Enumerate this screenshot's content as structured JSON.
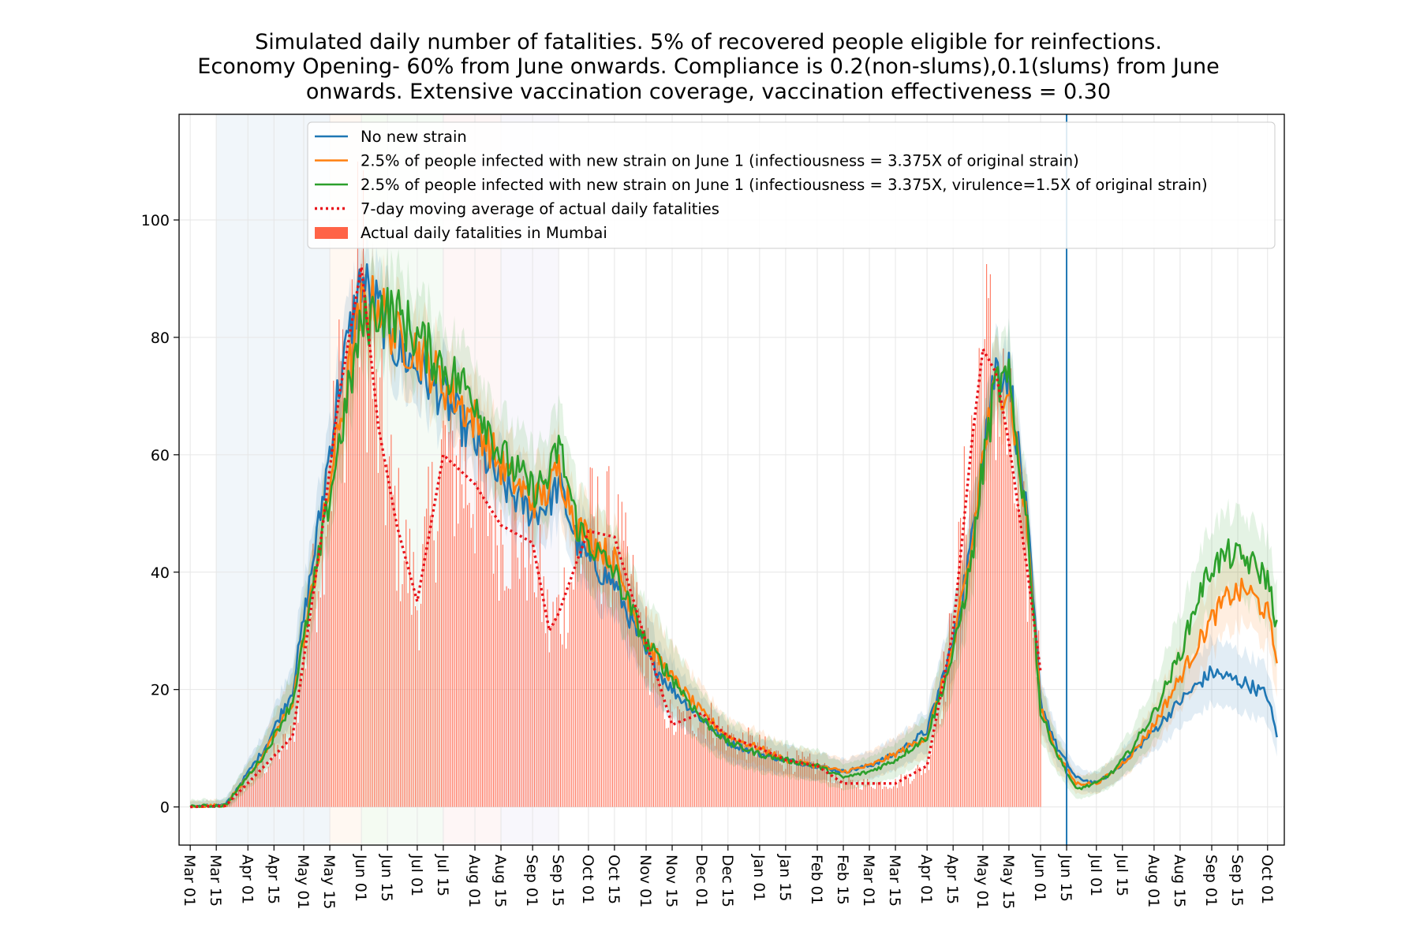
{
  "chart_data": {
    "type": "line",
    "title": [
      "Simulated daily number of fatalities. 5% of recovered people eligible for reinfections.",
      "Economy Opening- 60% from June onwards. Compliance is 0.2(non-slums),0.1(slums) from June",
      "onwards. Extensive vaccination coverage, vaccination effectiveness = 0.30"
    ],
    "xlabel": "",
    "ylabel": "",
    "ylim": [
      -6.5,
      118
    ],
    "grid": true,
    "x_start": "2020-02-24",
    "x_end": "2021-10-10",
    "x_tick_labels": [
      "Mar 01",
      "Mar 15",
      "Apr 01",
      "Apr 15",
      "May 01",
      "May 15",
      "Jun 01",
      "Jun 15",
      "Jul 01",
      "Jul 15",
      "Aug 01",
      "Aug 15",
      "Sep 01",
      "Sep 15",
      "Oct 01",
      "Oct 15",
      "Nov 01",
      "Nov 15",
      "Dec 01",
      "Dec 15",
      "Jan 01",
      "Jan 15",
      "Feb 01",
      "Feb 15",
      "Mar 01",
      "Mar 15",
      "Apr 01",
      "Apr 15",
      "May 01",
      "May 15",
      "Jun 01",
      "Jun 15",
      "Jul 01",
      "Jul 15",
      "Aug 01",
      "Aug 15",
      "Sep 01",
      "Sep 15",
      "Oct 01"
    ],
    "y_ticks": [
      0,
      20,
      40,
      60,
      80,
      100
    ],
    "y_tick_labels": [
      "0",
      "20",
      "40",
      "60",
      "80",
      "100"
    ],
    "vertical_line_label": "Jun 15 2021",
    "shaded_phases": [
      {
        "from": "Mar 15",
        "to": "May 15",
        "color": "#a6c8e0"
      },
      {
        "from": "May 15",
        "to": "Jun 01",
        "color": "#ffd3b0"
      },
      {
        "from": "Jun 01",
        "to": "Jun 15",
        "color": "#b8e6b0"
      },
      {
        "from": "Jun 15",
        "to": "Jul 15",
        "color": "#bfe6bf"
      },
      {
        "from": "Jul 15",
        "to": "Aug 15",
        "color": "#f6c6c6"
      },
      {
        "from": "Aug 15",
        "to": "Sep 15",
        "color": "#d4d0ee"
      }
    ],
    "legend": [
      {
        "label": "No new strain",
        "color": "#1f77b4",
        "style": "solid"
      },
      {
        "label": "2.5% of people infected with new strain on June 1 (infectiousness = 3.375X of original strain)",
        "color": "#ff7f0e",
        "style": "solid"
      },
      {
        "label": "2.5% of people infected with new strain on June 1 (infectiousness = 3.375X, virulence=1.5X of original strain)",
        "color": "#2ca02c",
        "style": "solid"
      },
      {
        "label": "7-day moving average of actual daily fatalities",
        "color": "#e8141c",
        "style": "dotted"
      },
      {
        "label": "Actual daily fatalities in Mumbai",
        "color": "#ff6347",
        "style": "bar"
      }
    ],
    "legend_position": "upper center",
    "series_keypoints_x": [
      "2020-03-01",
      "2020-03-20",
      "2020-04-10",
      "2020-04-25",
      "2020-05-10",
      "2020-05-20",
      "2020-06-01",
      "2020-06-10",
      "2020-06-20",
      "2020-07-01",
      "2020-07-15",
      "2020-08-01",
      "2020-08-15",
      "2020-09-01",
      "2020-09-10",
      "2020-09-15",
      "2020-09-25",
      "2020-10-01",
      "2020-10-15",
      "2020-11-01",
      "2020-11-15",
      "2020-12-01",
      "2020-12-15",
      "2021-01-01",
      "2021-01-15",
      "2021-02-01",
      "2021-02-15",
      "2021-03-01",
      "2021-03-15",
      "2021-04-01",
      "2021-04-15",
      "2021-04-25",
      "2021-05-01",
      "2021-05-08",
      "2021-05-15",
      "2021-05-25",
      "2021-06-01",
      "2021-06-10",
      "2021-06-20",
      "2021-07-01",
      "2021-07-10",
      "2021-07-20",
      "2021-08-01",
      "2021-08-15",
      "2021-08-25",
      "2021-09-01",
      "2021-09-10",
      "2021-09-20",
      "2021-10-01",
      "2021-10-06"
    ],
    "series": [
      {
        "name": "No new strain",
        "values": [
          0,
          0.3,
          10,
          20,
          50,
          72,
          90,
          85,
          78,
          75,
          70,
          62,
          55,
          50,
          52,
          55,
          45,
          42,
          38,
          26,
          20,
          15,
          11,
          9,
          8,
          7,
          6,
          7,
          9,
          13,
          28,
          45,
          62,
          75,
          74,
          48,
          18,
          10,
          5,
          4,
          6,
          9,
          13,
          18,
          21,
          23,
          22,
          21,
          19,
          12
        ],
        "band": 6
      },
      {
        "name": "2.5% of people infected with new strain on June 1 (infectiousness = 3.375X of original strain)",
        "values": [
          0,
          0.3,
          9,
          18,
          45,
          65,
          85,
          86,
          80,
          78,
          72,
          66,
          58,
          52,
          54,
          58,
          48,
          46,
          42,
          28,
          22,
          16,
          12,
          10,
          8,
          7,
          6,
          7,
          9,
          12,
          27,
          44,
          60,
          72,
          72,
          47,
          17,
          9,
          4,
          4,
          6,
          9,
          14,
          22,
          28,
          32,
          36,
          37,
          33,
          25
        ],
        "band": 6
      },
      {
        "name": "2.5% of people infected with new strain on June 1 (infectiousness = 3.375X, virulence=1.5X of original strain)",
        "values": [
          0,
          0.3,
          9,
          18,
          44,
          62,
          82,
          85,
          84,
          80,
          75,
          70,
          60,
          54,
          56,
          62,
          48,
          45,
          40,
          28,
          22,
          15,
          11,
          9,
          8,
          7,
          5,
          6,
          8,
          12,
          26,
          42,
          58,
          72,
          72,
          48,
          16,
          9,
          3,
          4,
          6,
          10,
          16,
          26,
          36,
          41,
          43,
          42,
          39,
          31
        ],
        "band": 7
      },
      {
        "name": "7-day moving average of actual daily fatalities",
        "values": [
          0,
          0.2,
          7,
          12,
          45,
          70,
          92,
          65,
          48,
          35,
          60,
          55,
          48,
          45,
          30,
          33,
          42,
          47,
          46,
          28,
          14,
          16,
          12,
          10,
          8,
          7,
          4,
          4,
          4,
          7,
          30,
          62,
          78,
          74,
          62,
          40,
          23
        ]
      }
    ],
    "bars_note": "Actual daily fatalities rendered as dense thin bars around the 7-day average, ending Jun 01 2021"
  }
}
